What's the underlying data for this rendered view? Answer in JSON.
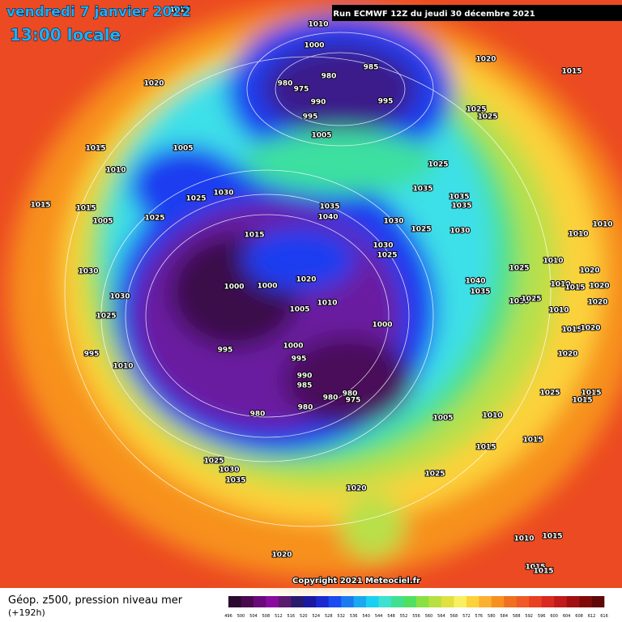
{
  "header": {
    "date": "vendredi 7 janvier 2022",
    "time": "13:00 locale",
    "run": "Run ECMWF 12Z du jeudi 30 décembre 2021"
  },
  "map": {
    "isobar_labels": [
      1015,
      1010,
      1000,
      985,
      980,
      980,
      975,
      1020,
      1015,
      1020,
      995,
      990,
      1025,
      1025,
      995,
      1005,
      1015,
      1005,
      1010,
      1025,
      1035,
      1025,
      1030,
      1035,
      1035,
      1035,
      1040,
      1015,
      1015,
      1005,
      1025,
      1030,
      1025,
      1030,
      1010,
      1010,
      1015,
      1030,
      1025,
      1025,
      1010,
      1030,
      1020,
      1040,
      1020,
      1000,
      1000,
      1010,
      1015,
      1020,
      1035,
      1030,
      1010,
      1005,
      1030,
      1025,
      1020,
      1010,
      1025,
      1000,
      1015,
      1020,
      1000,
      995,
      995,
      995,
      1020,
      1010,
      990,
      985,
      980,
      975,
      980,
      1025,
      1015,
      1015,
      980,
      980,
      1005,
      1010,
      1015,
      1015,
      1025,
      1030,
      1035,
      1025,
      1020,
      1010,
      1015,
      1020,
      1015,
      1015
    ],
    "copyright": "Copyright 2021 Meteociel.fr"
  },
  "footer": {
    "title": "Géop. z500, pression niveau mer",
    "lead": "(+192h)"
  },
  "colorbar": {
    "labels": [
      496,
      500,
      504,
      508,
      512,
      516,
      520,
      524,
      528,
      532,
      536,
      540,
      544,
      548,
      552,
      556,
      560,
      564,
      568,
      572,
      576,
      580,
      584,
      588,
      592,
      596,
      600,
      604,
      608,
      612,
      616
    ],
    "colors": [
      "#2a0a2e",
      "#4a0a4e",
      "#6a0a7a",
      "#8a0aa0",
      "#5a1a6e",
      "#2a1a6e",
      "#1a1aa0",
      "#1a2ad0",
      "#1a4af0",
      "#1a7af0",
      "#1aa8f0",
      "#1ad0f0",
      "#3ee0d0",
      "#40e090",
      "#50e060",
      "#8ae040",
      "#b8e040",
      "#e0e040",
      "#f8f060",
      "#fcd23a",
      "#fcb030",
      "#f89020",
      "#f07020",
      "#f05a28",
      "#e84020",
      "#d82a20",
      "#c01a1a",
      "#a01010",
      "#800a0a",
      "#600808"
    ]
  }
}
